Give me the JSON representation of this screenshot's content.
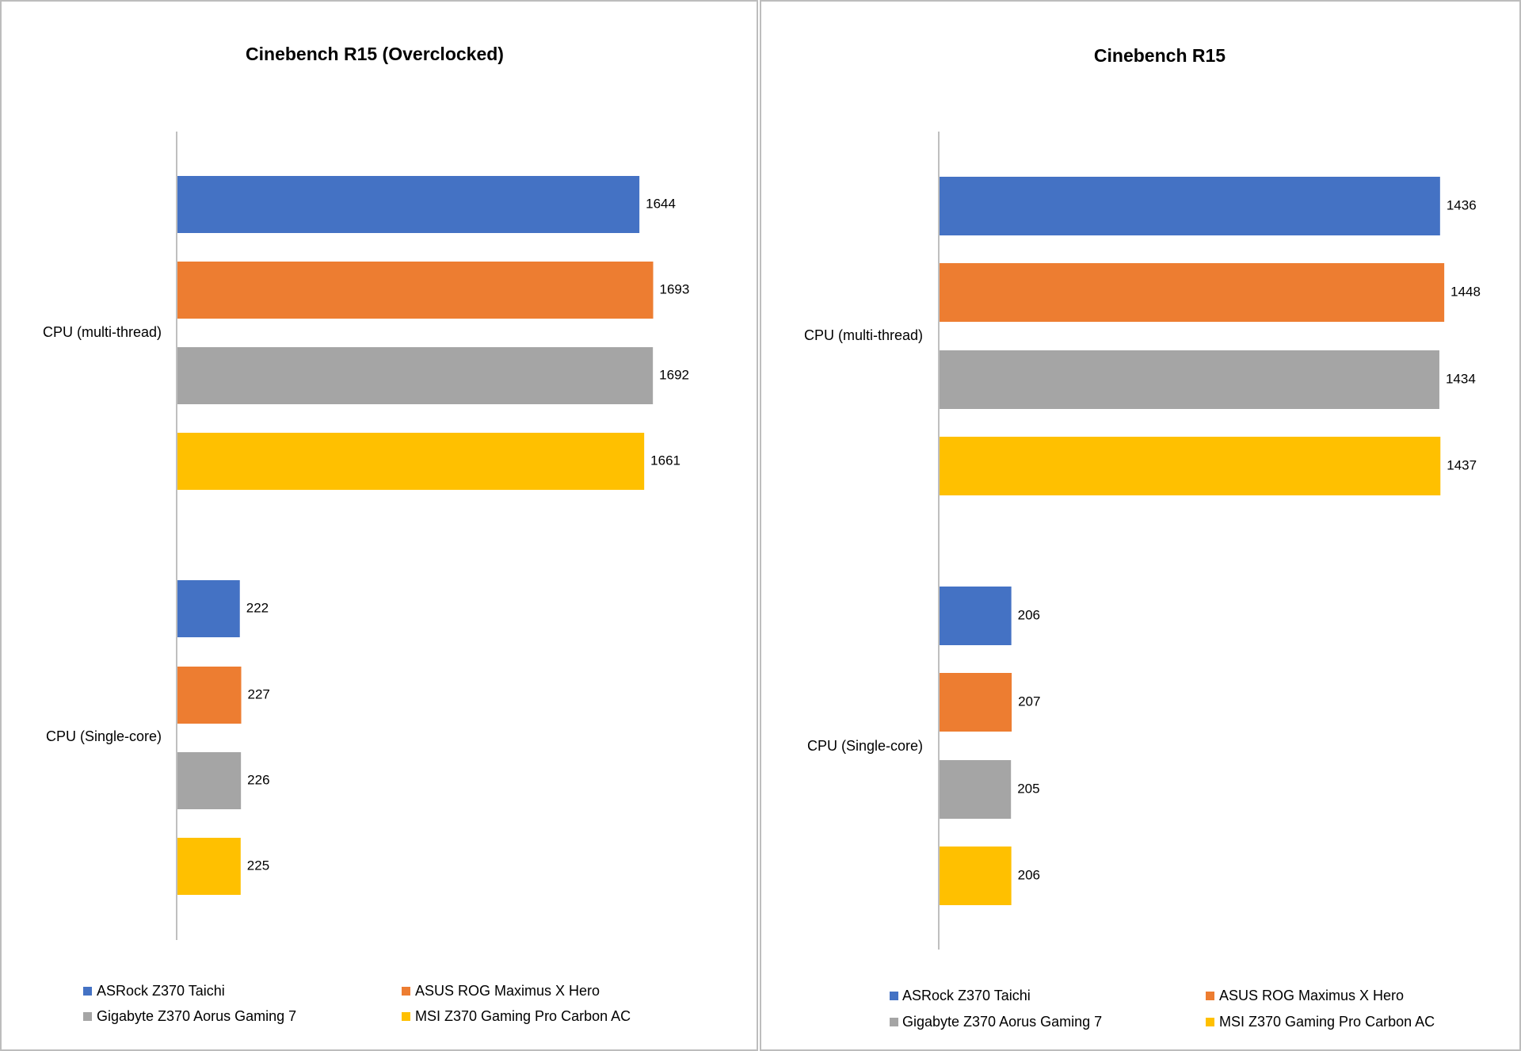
{
  "chart_data": [
    {
      "type": "bar",
      "orientation": "horizontal",
      "title": "Cinebench R15 (Overclocked)",
      "categories": [
        "CPU (multi-thread)",
        "CPU (Single-core)"
      ],
      "series": [
        {
          "name": "ASRock Z370 Taichi",
          "color": "#4472C4",
          "values": [
            1644,
            222
          ]
        },
        {
          "name": "ASUS ROG Maximus X Hero",
          "color": "#ED7D31",
          "values": [
            1693,
            227
          ]
        },
        {
          "name": "Gigabyte Z370 Aorus Gaming 7",
          "color": "#A5A5A5",
          "values": [
            1692,
            226
          ]
        },
        {
          "name": "MSI Z370 Gaming Pro Carbon AC",
          "color": "#FFC000",
          "values": [
            1661,
            225
          ]
        }
      ],
      "xlim": [
        0,
        1700
      ],
      "grid": false,
      "legend": "bottom"
    },
    {
      "type": "bar",
      "orientation": "horizontal",
      "title": "Cinebench R15",
      "categories": [
        "CPU (multi-thread)",
        "CPU (Single-core)"
      ],
      "series": [
        {
          "name": "ASRock Z370 Taichi",
          "color": "#4472C4",
          "values": [
            1436,
            206
          ]
        },
        {
          "name": "ASUS ROG Maximus X Hero",
          "color": "#ED7D31",
          "values": [
            1448,
            207
          ]
        },
        {
          "name": "Gigabyte Z370 Aorus Gaming 7",
          "color": "#A5A5A5",
          "values": [
            1434,
            205
          ]
        },
        {
          "name": "MSI Z370 Gaming Pro Carbon AC",
          "color": "#FFC000",
          "values": [
            1437,
            206
          ]
        }
      ],
      "xlim": [
        0,
        1450
      ],
      "grid": false,
      "legend": "bottom"
    }
  ]
}
